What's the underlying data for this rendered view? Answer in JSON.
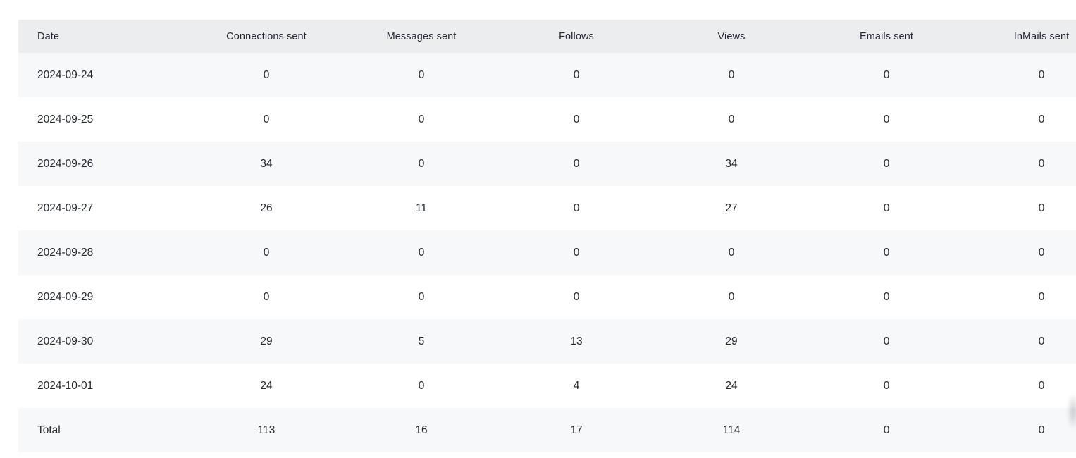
{
  "colors": {
    "header_bg": "#ECEDEF",
    "stripe_bg": "#F7F8FA",
    "row_bg": "#FFFFFF",
    "text": "#232830",
    "page_bg": "#FFFFFF"
  },
  "table": {
    "columns": [
      "Date",
      "Connections sent",
      "Messages sent",
      "Follows",
      "Views",
      "Emails sent",
      "InMails sent"
    ],
    "rows": [
      {
        "date": "2024-09-24",
        "values": [
          "0",
          "0",
          "0",
          "0",
          "0",
          "0"
        ]
      },
      {
        "date": "2024-09-25",
        "values": [
          "0",
          "0",
          "0",
          "0",
          "0",
          "0"
        ]
      },
      {
        "date": "2024-09-26",
        "values": [
          "34",
          "0",
          "0",
          "34",
          "0",
          "0"
        ]
      },
      {
        "date": "2024-09-27",
        "values": [
          "26",
          "11",
          "0",
          "27",
          "0",
          "0"
        ]
      },
      {
        "date": "2024-09-28",
        "values": [
          "0",
          "0",
          "0",
          "0",
          "0",
          "0"
        ]
      },
      {
        "date": "2024-09-29",
        "values": [
          "0",
          "0",
          "0",
          "0",
          "0",
          "0"
        ]
      },
      {
        "date": "2024-09-30",
        "values": [
          "29",
          "5",
          "13",
          "29",
          "0",
          "0"
        ]
      },
      {
        "date": "2024-10-01",
        "values": [
          "24",
          "0",
          "4",
          "24",
          "0",
          "0"
        ]
      }
    ],
    "total_row": {
      "label": "Total",
      "values": [
        "113",
        "16",
        "17",
        "114",
        "0",
        "0"
      ]
    }
  }
}
